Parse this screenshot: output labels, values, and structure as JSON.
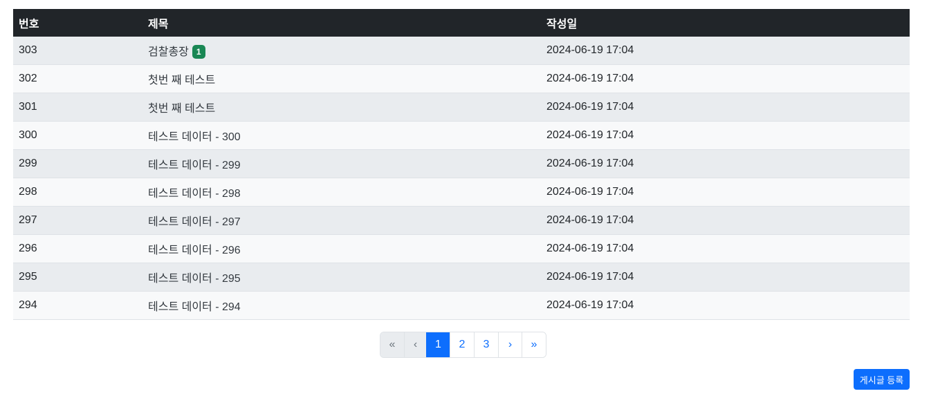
{
  "table": {
    "headers": [
      "번호",
      "제목",
      "작성일"
    ],
    "rows": [
      {
        "no": "303",
        "title": "검찰총장",
        "badge": "1",
        "date": "2024-06-19 17:04"
      },
      {
        "no": "302",
        "title": "첫번 째 테스트",
        "date": "2024-06-19 17:04"
      },
      {
        "no": "301",
        "title": "첫번 째 테스트",
        "date": "2024-06-19 17:04"
      },
      {
        "no": "300",
        "title": "테스트 데이터 - 300",
        "date": "2024-06-19 17:04"
      },
      {
        "no": "299",
        "title": "테스트 데이터 - 299",
        "date": "2024-06-19 17:04"
      },
      {
        "no": "298",
        "title": "테스트 데이터 - 298",
        "date": "2024-06-19 17:04"
      },
      {
        "no": "297",
        "title": "테스트 데이터 - 297",
        "date": "2024-06-19 17:04"
      },
      {
        "no": "296",
        "title": "테스트 데이터 - 296",
        "date": "2024-06-19 17:04"
      },
      {
        "no": "295",
        "title": "테스트 데이터 - 295",
        "date": "2024-06-19 17:04"
      },
      {
        "no": "294",
        "title": "테스트 데이터 - 294",
        "date": "2024-06-19 17:04"
      }
    ]
  },
  "pagination": {
    "first": "«",
    "prev": "‹",
    "pages": [
      "1",
      "2",
      "3"
    ],
    "active_page": "1",
    "next": "›",
    "last": "»"
  },
  "actions": {
    "register_label": "게시글 등록"
  },
  "colors": {
    "header_bg": "#212529",
    "badge": "#198754",
    "primary": "#0d6efd"
  }
}
